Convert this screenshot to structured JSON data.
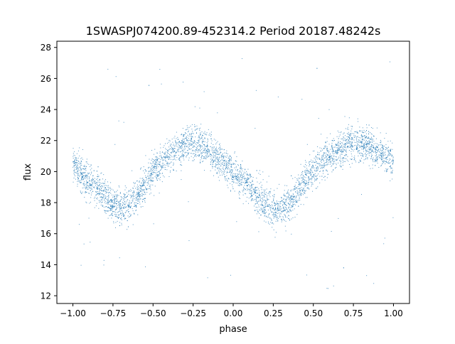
{
  "chart_data": {
    "type": "scatter",
    "title": "1SWASPJ074200.89-452314.2 Period 20187.48242s",
    "xlabel": "phase",
    "ylabel": "flux",
    "xlim": [
      -1.1,
      1.1
    ],
    "ylim": [
      11.5,
      28.4
    ],
    "xticks": [
      -1.0,
      -0.75,
      -0.5,
      -0.25,
      0.0,
      0.25,
      0.5,
      0.75,
      1.0
    ],
    "xtick_labels": [
      "−1.00",
      "−0.75",
      "−0.50",
      "−0.25",
      "0.00",
      "0.25",
      "0.50",
      "0.75",
      "1.00"
    ],
    "yticks": [
      12,
      14,
      16,
      18,
      20,
      22,
      24,
      26,
      28
    ],
    "ytick_labels": [
      "12",
      "14",
      "16",
      "18",
      "20",
      "22",
      "24",
      "26",
      "28"
    ],
    "grid": false,
    "point_color": "#1f77b4",
    "series": [
      {
        "phase": [
          -1.0,
          -0.95,
          -0.9,
          -0.85,
          -0.8,
          -0.75,
          -0.7,
          -0.65,
          -0.6,
          -0.55,
          -0.5,
          -0.45,
          -0.4,
          -0.35,
          -0.3,
          -0.25,
          -0.2,
          -0.15,
          -0.1,
          -0.05,
          0.0,
          0.05,
          0.1,
          0.15,
          0.2,
          0.25,
          0.3,
          0.35,
          0.4,
          0.45,
          0.5,
          0.55,
          0.6,
          0.65,
          0.7,
          0.75,
          0.8,
          0.85,
          0.9,
          0.95,
          1.0
        ],
        "flux_mean": [
          20.6,
          19.9,
          19.4,
          18.9,
          18.3,
          17.9,
          17.7,
          17.9,
          18.4,
          19.2,
          20.0,
          20.5,
          21.0,
          21.4,
          21.7,
          21.8,
          21.7,
          21.3,
          20.9,
          20.4,
          20.0,
          19.6,
          19.0,
          18.3,
          17.9,
          17.6,
          17.6,
          18.0,
          18.7,
          19.5,
          20.1,
          20.6,
          21.0,
          21.3,
          21.6,
          21.8,
          21.8,
          21.6,
          21.3,
          21.0,
          20.6
        ],
        "flux_spread": 0.55
      }
    ]
  }
}
